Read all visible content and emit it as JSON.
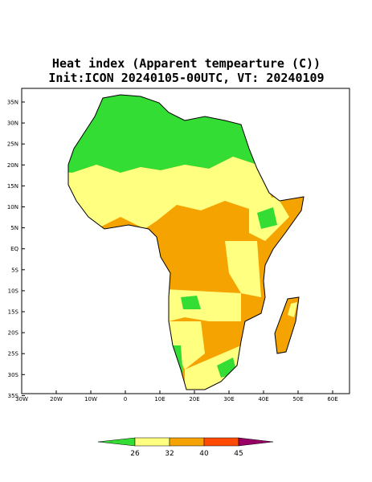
{
  "title": "Heat index (Apparent tempearture (C))",
  "subtitle": "Init:ICON 20240105-00UTC, VT: 20240109",
  "lat_labels": [
    "35N",
    "30N",
    "25N",
    "20N",
    "15N",
    "10N",
    "5N",
    "EQ",
    "5S",
    "10S",
    "15S",
    "20S",
    "25S",
    "30S",
    "35S"
  ],
  "lon_labels": [
    "30W",
    "20W",
    "10W",
    "0",
    "10E",
    "20E",
    "30E",
    "40E",
    "50E",
    "60E"
  ],
  "colorbar": {
    "ticks": [
      26,
      32,
      40,
      45
    ],
    "colors": [
      "#33dd33",
      "#ffff80",
      "#f5a300",
      "#ff4a00",
      "#990066"
    ]
  }
}
